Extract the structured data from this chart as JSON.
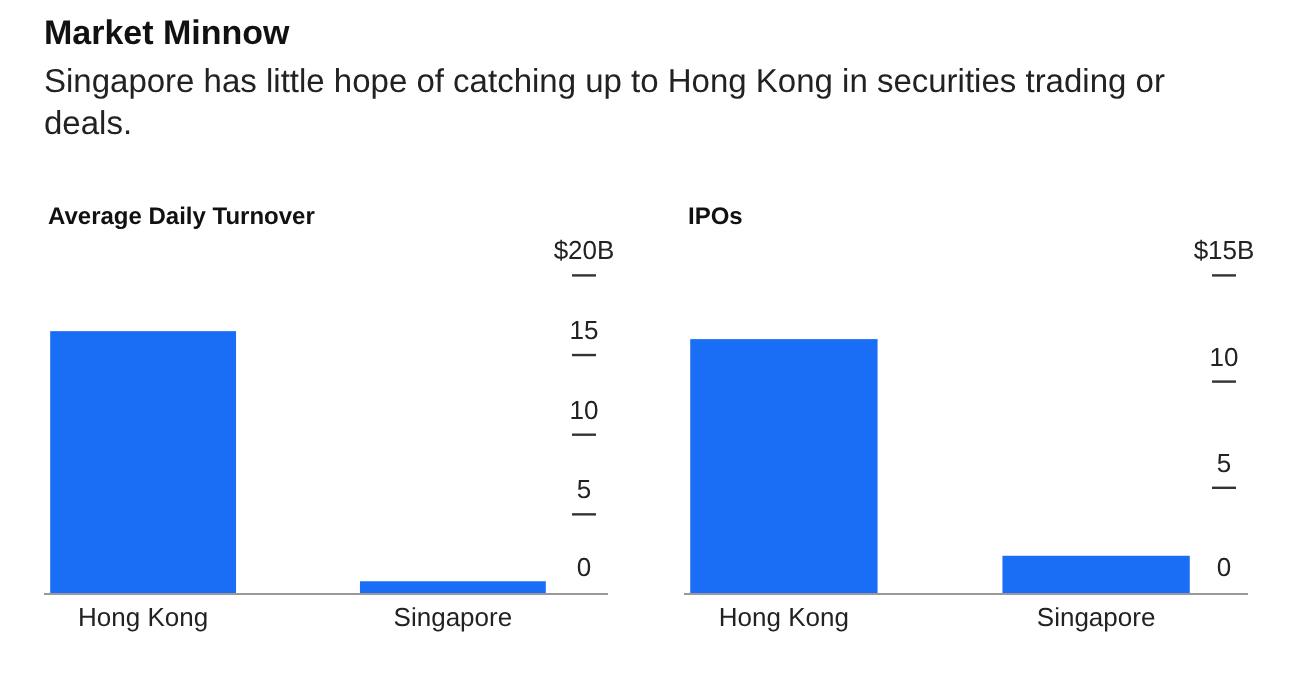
{
  "chart_data": [
    {
      "type": "other",
      "title": "Market Minnow",
      "subtitle": "Singapore has little hope of catching up to Hong Kong in securities trading or deals."
    },
    {
      "type": "bar",
      "title": "Average Daily Turnover",
      "categories": [
        "Hong Kong",
        "Singapore"
      ],
      "values": [
        16.5,
        0.8
      ],
      "color": "#1a6ef5",
      "ylim": [
        0,
        20
      ],
      "yticks": [
        0,
        5,
        10,
        15,
        {
          "value": 20,
          "label": "$20B"
        }
      ],
      "grid": false
    },
    {
      "type": "bar",
      "title": "IPOs",
      "categories": [
        "Hong Kong",
        "Singapore"
      ],
      "values": [
        12,
        1.8
      ],
      "color": "#1a6ef5",
      "ylim": [
        0,
        15
      ],
      "yticks": [
        0,
        5,
        10,
        {
          "value": 15,
          "label": "$15B"
        }
      ],
      "grid": false
    }
  ]
}
